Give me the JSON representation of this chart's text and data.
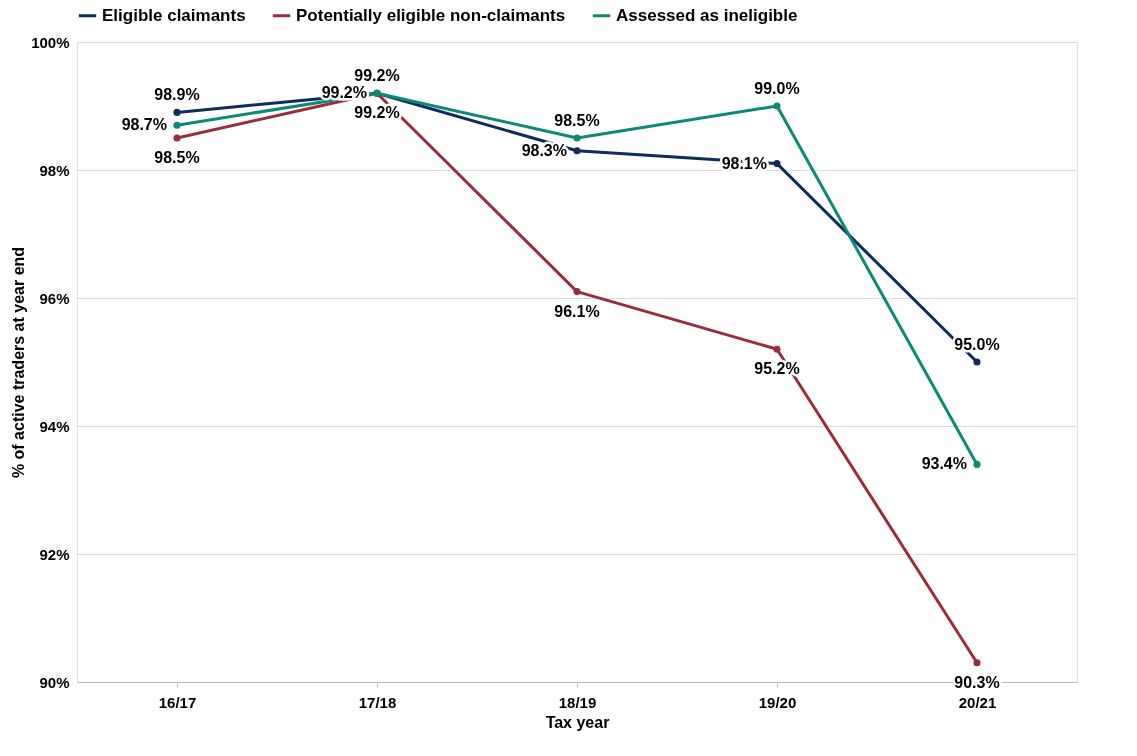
{
  "chart_data": {
    "type": "line",
    "xlabel": "Tax year",
    "ylabel": "% of active traders at year end",
    "categories": [
      "16/17",
      "17/18",
      "18/19",
      "19/20",
      "20/21"
    ],
    "series": [
      {
        "name": "Eligible claimants",
        "color": "#0e2c5e",
        "values": [
          98.9,
          99.2,
          98.3,
          98.1,
          95.0
        ],
        "value_labels": [
          "98.9%",
          "99.2%",
          "98.3%",
          "98.1%",
          "95.0%"
        ]
      },
      {
        "name": "Potentially eligible non-claimants",
        "color": "#9b2d3a",
        "values": [
          98.5,
          99.2,
          96.1,
          95.2,
          90.3
        ],
        "value_labels": [
          "98.5%",
          "99.2%",
          "96.1%",
          "95.2%",
          "90.3%"
        ]
      },
      {
        "name": "Assessed as ineligible",
        "color": "#0b8a74",
        "values": [
          98.7,
          99.2,
          98.5,
          99.0,
          93.4
        ],
        "value_labels": [
          "98.7%",
          "99.2%",
          "98.5%",
          "99.0%",
          "93.4%"
        ]
      }
    ],
    "ylim": [
      90,
      100
    ],
    "yticks": [
      {
        "value": 90,
        "label": "90%"
      },
      {
        "value": 92,
        "label": "92%"
      },
      {
        "value": 94,
        "label": "94%"
      },
      {
        "value": 96,
        "label": "96%"
      },
      {
        "value": 98,
        "label": "98%"
      },
      {
        "value": 100,
        "label": "100%"
      }
    ],
    "grid": "y",
    "legend": "top",
    "marker": "circle",
    "line_style": "solid"
  }
}
